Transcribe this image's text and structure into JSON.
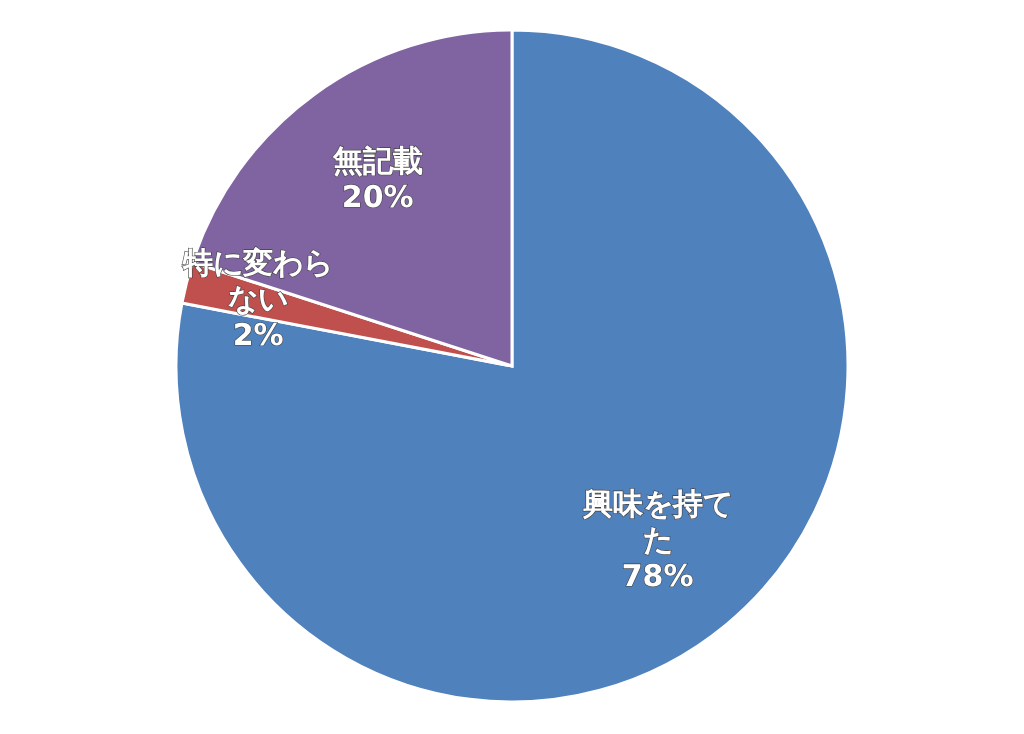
{
  "chart_data": {
    "type": "pie",
    "categories": [
      "興味を持てた",
      "特に変わらない",
      "無記載"
    ],
    "values": [
      78,
      2,
      20
    ],
    "colors": [
      "#4f81bd",
      "#c0504d",
      "#8064a2"
    ],
    "value_labels": [
      "78%",
      "2%",
      "20%"
    ]
  }
}
